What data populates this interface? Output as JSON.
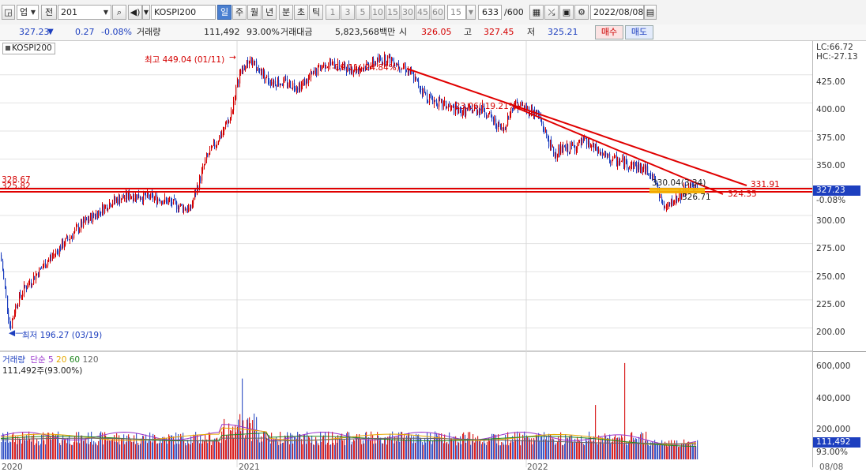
{
  "toolbar": {
    "type_select": "업",
    "code_button": "전",
    "code_value": "201",
    "symbol_name": "KOSPI200",
    "periods": [
      "일",
      "주",
      "월",
      "년",
      "분",
      "초",
      "틱"
    ],
    "active_period": "일",
    "intervals": [
      "1",
      "3",
      "5",
      "10",
      "15",
      "30",
      "45",
      "60"
    ],
    "tick_value": "15",
    "count": "633",
    "count_total": "/600",
    "date": "2022/08/08"
  },
  "quote": {
    "price": "327.23",
    "change": "0.27",
    "change_pct": "-0.08%",
    "volume_label": "거래량",
    "volume": "111,492",
    "volume_pct": "93.00%",
    "amount_label": "거래대금",
    "amount": "5,823,568백만",
    "open_label": "시",
    "open": "326.05",
    "high_label": "고",
    "high": "327.45",
    "low_label": "저",
    "low": "325.21",
    "buy_button": "매수",
    "sell_button": "매도"
  },
  "chart": {
    "legend": "KOSPI200",
    "high_marker": "최고 449.04 (01/11)",
    "low_marker": "최저 196.27 (03/19)",
    "trend1_label": "-19.11(-24.84%)",
    "trend2_label": "-23.06(-19.21%)",
    "hline_label_a": "328.67",
    "hline_label_b": "325.82",
    "end_label_1": "331.91",
    "end_label_2": "324.35",
    "anno_1": "330.04(3.34)",
    "anno_2": "326.71",
    "lc": "LC:66.72",
    "hc": "HC:-27.13",
    "current_price": "327.23",
    "current_change": "-0.08%",
    "price_ticks": [
      "425.00",
      "400.00",
      "375.00",
      "350.00",
      "325.00",
      "300.00",
      "275.00",
      "250.00",
      "225.00",
      "200.00"
    ],
    "year_labels": [
      "2020",
      "2021",
      "2022",
      "08/08"
    ]
  },
  "volume_panel": {
    "title": "거래량",
    "ma_type": "단순",
    "ma_periods": [
      "5",
      "20",
      "60",
      "120"
    ],
    "readout": "111,492주(93.00%)",
    "ticks": [
      "600,000",
      "400,000",
      "200,000"
    ],
    "current": "111,492",
    "current_pct": "93.00%"
  },
  "colors": {
    "up": "#d40000",
    "down": "#1d3fbf",
    "trendline": "#e00000",
    "highlight": "#f5b800"
  },
  "chart_data": {
    "type": "candlestick",
    "title": "KOSPI200",
    "price_range": [
      180,
      455
    ],
    "high": {
      "value": 449.04,
      "date": "01/11"
    },
    "low": {
      "value": 196.27,
      "date": "03/19"
    },
    "waypoints": [
      [
        0,
        265
      ],
      [
        12,
        200
      ],
      [
        20,
        222
      ],
      [
        30,
        235
      ],
      [
        60,
        260
      ],
      [
        100,
        290
      ],
      [
        140,
        312
      ],
      [
        165,
        318
      ],
      [
        200,
        315
      ],
      [
        240,
        305
      ],
      [
        260,
        350
      ],
      [
        290,
        385
      ],
      [
        302,
        425
      ],
      [
        315,
        438
      ],
      [
        340,
        420
      ],
      [
        380,
        415
      ],
      [
        410,
        435
      ],
      [
        450,
        430
      ],
      [
        490,
        440
      ],
      [
        515,
        430
      ],
      [
        540,
        405
      ],
      [
        580,
        392
      ],
      [
        610,
        395
      ],
      [
        635,
        375
      ],
      [
        650,
        400
      ],
      [
        680,
        390
      ],
      [
        700,
        355
      ],
      [
        740,
        365
      ],
      [
        770,
        350
      ],
      [
        800,
        345
      ],
      [
        825,
        338
      ],
      [
        840,
        305
      ],
      [
        855,
        315
      ],
      [
        870,
        325
      ],
      [
        882,
        327
      ]
    ],
    "hlines": [
      328.67,
      325.82
    ],
    "volume_range": [
      0,
      650000
    ],
    "volume_spikes": [
      [
        790,
        620000
      ],
      [
        752,
        350000
      ],
      [
        305,
        520000
      ]
    ]
  }
}
